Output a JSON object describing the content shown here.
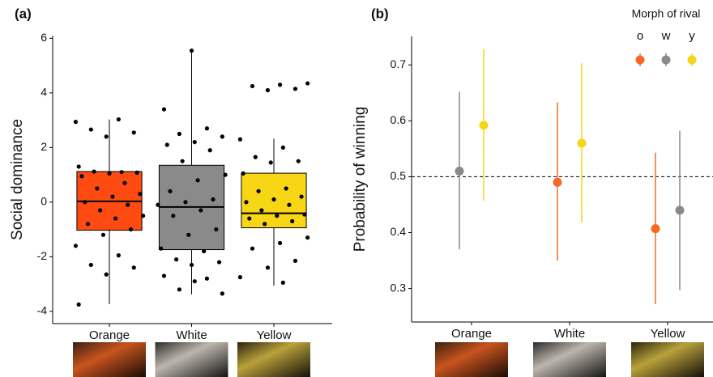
{
  "chart_data": [
    {
      "type": "box",
      "panel_label": "(a)",
      "y_label": "Social dominance",
      "categories": [
        "Orange",
        "White",
        "Yellow"
      ],
      "colors": [
        "#ff4a12",
        "#8a8a8a",
        "#f7d616"
      ],
      "whisker_low": [
        -3.74,
        -3.38,
        -3.06
      ],
      "q1": [
        -1.03,
        -1.74,
        -0.94
      ],
      "median": [
        0.03,
        -0.18,
        -0.41
      ],
      "q3": [
        1.12,
        1.35,
        1.06
      ],
      "whisker_high": [
        3.03,
        5.59,
        2.32
      ],
      "points": [
        [
          2.94,
          3.03,
          2.66,
          2.55,
          2.4,
          1.3,
          1.1,
          1.12,
          1.08,
          1.05,
          0.95,
          0.7,
          0.5,
          0.3,
          0.2,
          0.0,
          -0.1,
          -0.3,
          -0.5,
          -0.6,
          -0.8,
          -1.0,
          -1.2,
          -1.6,
          -1.95,
          -2.3,
          -2.4,
          -2.65,
          -3.75
        ],
        [
          5.55,
          3.4,
          2.7,
          2.5,
          2.4,
          2.2,
          2.1,
          1.9,
          1.5,
          1.0,
          0.8,
          0.4,
          0.1,
          0.0,
          -0.1,
          -0.3,
          -0.5,
          -1.0,
          -1.2,
          -1.7,
          -1.8,
          -2.1,
          -2.2,
          -2.3,
          -2.7,
          -2.8,
          -3.2,
          -3.35,
          -2.9
        ],
        [
          4.35,
          4.3,
          4.25,
          4.15,
          4.1,
          2.3,
          2.0,
          1.65,
          1.5,
          1.45,
          1.05,
          0.5,
          0.4,
          0.2,
          0.1,
          0.0,
          -0.1,
          -0.3,
          -0.45,
          -0.5,
          -0.6,
          -0.7,
          -0.8,
          -1.3,
          -1.5,
          -1.7,
          -2.15,
          -2.4,
          -2.75,
          -2.95
        ]
      ],
      "ylim": [
        -4.45,
        6.1
      ],
      "yticks": [
        -4,
        -2,
        0,
        2,
        4,
        6
      ]
    },
    {
      "type": "pointrange",
      "panel_label": "(b)",
      "y_label": "Probability of winning",
      "categories": [
        "Orange",
        "White",
        "Yellow"
      ],
      "legend_title": "Morph of rival",
      "legend": "top-right",
      "hline": 0.5,
      "series": [
        {
          "name": "o",
          "color": "#f26a26",
          "values": [
            null,
            0.49,
            0.407
          ],
          "lower": [
            null,
            0.35,
            0.272
          ],
          "upper": [
            null,
            0.633,
            0.543
          ]
        },
        {
          "name": "w",
          "color": "#8a8a8a",
          "values": [
            0.51,
            null,
            0.44
          ],
          "lower": [
            0.37,
            null,
            0.297
          ],
          "upper": [
            0.652,
            null,
            0.582
          ]
        },
        {
          "name": "y",
          "color": "#f5d718",
          "values": [
            0.592,
            0.56,
            null
          ],
          "lower": [
            0.457,
            0.418,
            null
          ],
          "upper": [
            0.728,
            0.703,
            null
          ]
        }
      ],
      "ylim": [
        0.24,
        0.751
      ],
      "yticks": [
        0.3,
        0.4,
        0.5,
        0.6,
        0.7
      ]
    }
  ]
}
